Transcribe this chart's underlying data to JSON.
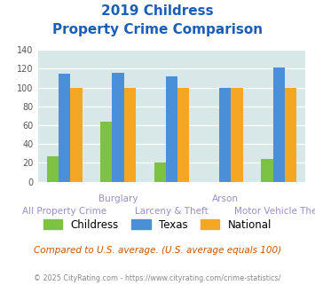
{
  "title_line1": "2019 Childress",
  "title_line2": "Property Crime Comparison",
  "groups": [
    "All Property Crime",
    "Burglary",
    "Larceny & Theft",
    "Arson",
    "Motor Vehicle Theft"
  ],
  "group_labels_top": [
    "",
    "Burglary",
    "",
    "Arson",
    ""
  ],
  "group_labels_bottom": [
    "All Property Crime",
    "",
    "Larceny & Theft",
    "",
    "Motor Vehicle Theft"
  ],
  "childress": [
    27,
    64,
    20,
    0,
    24
  ],
  "texas": [
    115,
    116,
    112,
    100,
    121
  ],
  "national": [
    100,
    100,
    100,
    100,
    100
  ],
  "color_childress": "#7dc242",
  "color_texas": "#4a90d9",
  "color_national": "#f5a623",
  "color_background": "#d8e8e8",
  "color_title": "#1a5eb8",
  "color_xlabel": "#9b8ec4",
  "color_note": "#cc5500",
  "color_footer": "#888888",
  "ylim": [
    0,
    140
  ],
  "yticks": [
    0,
    20,
    40,
    60,
    80,
    100,
    120,
    140
  ],
  "note_text": "Compared to U.S. average. (U.S. average equals 100)",
  "footer_text": "© 2025 CityRating.com - https://www.cityrating.com/crime-statistics/"
}
